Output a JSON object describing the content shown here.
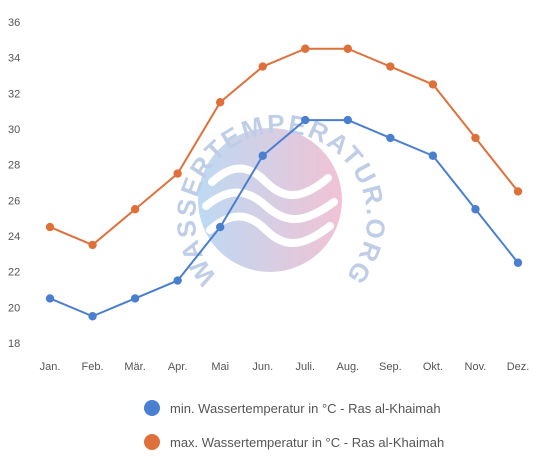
{
  "chart_data": {
    "type": "line",
    "categories": [
      "Jan.",
      "Feb.",
      "Mär.",
      "Apr.",
      "Mai",
      "Jun.",
      "Juli.",
      "Aug.",
      "Sep.",
      "Okt.",
      "Nov.",
      "Dez."
    ],
    "series": [
      {
        "name": "min. Wassertemperatur in °C - Ras al-Khaimah",
        "color": "#4a7fd0",
        "values": [
          20.5,
          19.5,
          20.5,
          21.5,
          24.5,
          28.5,
          30.5,
          30.5,
          29.5,
          28.5,
          25.5,
          22.5
        ]
      },
      {
        "name": "max. Wassertemperatur in °C - Ras al-Khaimah",
        "color": "#e0703a",
        "values": [
          24.5,
          23.5,
          25.5,
          27.5,
          31.5,
          33.5,
          34.5,
          34.5,
          33.5,
          32.5,
          29.5,
          26.5
        ]
      }
    ],
    "yticks": [
      18,
      20,
      22,
      24,
      26,
      28,
      30,
      32,
      34,
      36
    ],
    "ylim": [
      18,
      36
    ],
    "grid": false,
    "legend_position": "bottom",
    "title": "",
    "xlabel": "",
    "ylabel": ""
  },
  "watermark": {
    "text": "WASSERTEMPERATUR.ORG"
  }
}
